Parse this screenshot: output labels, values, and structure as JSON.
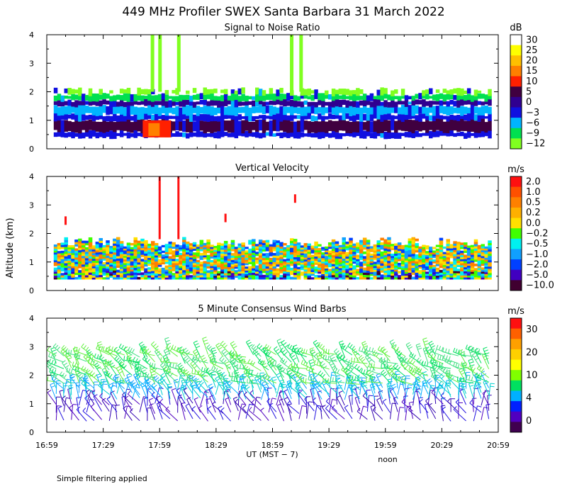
{
  "figure": {
    "title": "449 MHz Profiler SWEX Santa Barbara 31 March 2022",
    "ylabel": "Altitude (km)",
    "xlabel": "UT  (MST − 7)",
    "xnote": "noon",
    "footnote": "Simple filtering applied"
  },
  "x_ticks": [
    "16:59",
    "17:29",
    "17:59",
    "18:29",
    "18:59",
    "19:29",
    "19:59",
    "20:29",
    "20:59"
  ],
  "y_ticks": [
    "0",
    "1",
    "2",
    "3",
    "4"
  ],
  "colors": {
    "missing": "#ffffff"
  },
  "chart_data": [
    {
      "type": "heatmap",
      "title": "Signal to Noise Ratio",
      "x_range": [
        "16:59",
        "20:59"
      ],
      "ylim": [
        0,
        4
      ],
      "colorbar_unit": "dB",
      "colorbar_labels": [
        "30",
        "25",
        "20",
        "15",
        "10",
        "5",
        "0",
        "−3",
        "−6",
        "−9",
        "−12"
      ],
      "colorbar_colors": [
        "#ffffff",
        "#ffff00",
        "#ffc000",
        "#ff8000",
        "#ff2000",
        "#400040",
        "#300090",
        "#1010e0",
        "#00b4ff",
        "#00e050",
        "#80ff20"
      ],
      "bands": [
        {
          "ymin": 0.4,
          "ymax": 0.6,
          "value": "−3",
          "note": "dark blue lowest layer"
        },
        {
          "ymin": 0.6,
          "ymax": 1.0,
          "value": "5",
          "note": "dark purple / violet band"
        },
        {
          "ymin": 1.0,
          "ymax": 1.2,
          "value": "−3"
        },
        {
          "ymin": 1.2,
          "ymax": 1.5,
          "value": "−6"
        },
        {
          "ymin": 1.5,
          "ymax": 1.7,
          "value": "0"
        },
        {
          "ymin": 1.7,
          "ymax": 1.9,
          "value": "−9"
        },
        {
          "ymin": 1.9,
          "ymax": 2.1,
          "value": "−12",
          "note": "patchy lime top edge"
        }
      ],
      "features": [
        {
          "type": "strong_echo",
          "x_range": [
            "17:50",
            "18:05"
          ],
          "y_range": [
            0.4,
            1.0
          ],
          "value": "10"
        },
        {
          "type": "vertical_streaks",
          "times": [
            "17:55",
            "17:59",
            "18:09",
            "19:09",
            "19:14"
          ],
          "y_range": [
            2.0,
            4.0
          ],
          "value": "−12"
        }
      ]
    },
    {
      "type": "heatmap",
      "title": "Vertical Velocity",
      "x_range": [
        "16:59",
        "20:59"
      ],
      "ylim": [
        0,
        4
      ],
      "colorbar_unit": "m/s",
      "colorbar_labels": [
        "2.0",
        "1.0",
        "0.5",
        "0.2",
        "0.0",
        "−0.2",
        "−0.5",
        "−1.0",
        "−2.0",
        "−5.0",
        "−10.0"
      ],
      "colorbar_colors": [
        "#ff1010",
        "#ff5000",
        "#ff8000",
        "#ffb000",
        "#ffe000",
        "#40ff00",
        "#00f0f0",
        "#10a0ff",
        "#0040ff",
        "#4000c0",
        "#400030"
      ],
      "bands": [
        {
          "ymin": 0.4,
          "ymax": 1.7,
          "value": "mixed −1.0 to 0.5"
        }
      ],
      "features": [
        {
          "type": "vertical_streaks",
          "times": [
            "17:59",
            "18:09"
          ],
          "y_range": [
            1.8,
            4.0
          ],
          "value": "2.0"
        },
        {
          "type": "spots",
          "times": [
            "17:09",
            "18:34",
            "19:11"
          ],
          "y_range": [
            2.0,
            3.3
          ],
          "value": "2.0"
        }
      ]
    },
    {
      "type": "wind_barbs",
      "title": "5 Minute Consensus Wind Barbs",
      "x_range": [
        "16:59",
        "20:59"
      ],
      "ylim": [
        0,
        4
      ],
      "colorbar_unit": "m/s",
      "colorbar_labels": [
        "30",
        "20",
        "10",
        "4",
        "0"
      ],
      "colorbar_colors": [
        "#ff1010",
        "#ff6000",
        "#ffa000",
        "#ffd000",
        "#ffff00",
        "#80ff00",
        "#00e060",
        "#00b0ff",
        "#0020ff",
        "#5000c0",
        "#400050"
      ],
      "layers": [
        {
          "altitude_range": [
            0.3,
            1.1
          ],
          "speed": "0–4",
          "color": "dark blue / purple"
        },
        {
          "altitude_range": [
            1.1,
            1.6
          ],
          "speed": "4–10",
          "color": "cyan / blue"
        },
        {
          "altitude_range": [
            1.6,
            2.8
          ],
          "speed": "10–20",
          "color": "green"
        }
      ]
    }
  ]
}
